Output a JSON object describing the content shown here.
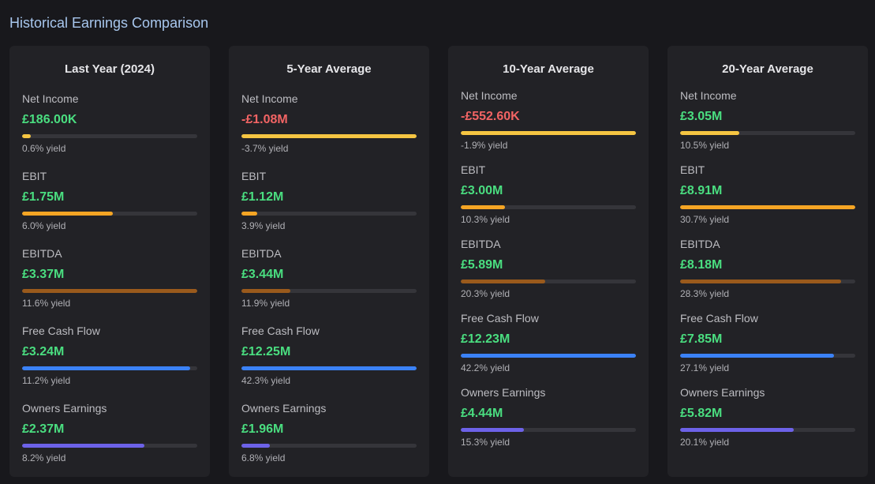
{
  "page_title": "Historical Earnings Comparison",
  "colors": {
    "net_income": "#f5c542",
    "ebit": "#f5a524",
    "ebitda": "#9a5a1c",
    "free_cash_flow": "#3b82f6",
    "owners_earnings": "#6d62e8"
  },
  "cards": [
    {
      "title": "Last Year (2024)",
      "metrics": [
        {
          "key": "net_income",
          "label": "Net Income",
          "value": "£186.00K",
          "yield": "0.6% yield",
          "fill": 0.05,
          "negative": false
        },
        {
          "key": "ebit",
          "label": "EBIT",
          "value": "£1.75M",
          "yield": "6.0% yield",
          "fill": 0.52,
          "negative": false
        },
        {
          "key": "ebitda",
          "label": "EBITDA",
          "value": "£3.37M",
          "yield": "11.6% yield",
          "fill": 1.0,
          "negative": false
        },
        {
          "key": "free_cash_flow",
          "label": "Free Cash Flow",
          "value": "£3.24M",
          "yield": "11.2% yield",
          "fill": 0.96,
          "negative": false
        },
        {
          "key": "owners_earnings",
          "label": "Owners Earnings",
          "value": "£2.37M",
          "yield": "8.2% yield",
          "fill": 0.7,
          "negative": false
        }
      ]
    },
    {
      "title": "5-Year Average",
      "metrics": [
        {
          "key": "net_income",
          "label": "Net Income",
          "value": "-£1.08M",
          "yield": "-3.7% yield",
          "fill": 1.0,
          "negative": true
        },
        {
          "key": "ebit",
          "label": "EBIT",
          "value": "£1.12M",
          "yield": "3.9% yield",
          "fill": 0.09,
          "negative": false
        },
        {
          "key": "ebitda",
          "label": "EBITDA",
          "value": "£3.44M",
          "yield": "11.9% yield",
          "fill": 0.28,
          "negative": false
        },
        {
          "key": "free_cash_flow",
          "label": "Free Cash Flow",
          "value": "£12.25M",
          "yield": "42.3% yield",
          "fill": 1.0,
          "negative": false
        },
        {
          "key": "owners_earnings",
          "label": "Owners Earnings",
          "value": "£1.96M",
          "yield": "6.8% yield",
          "fill": 0.16,
          "negative": false
        }
      ]
    },
    {
      "title": "10-Year Average",
      "metrics": [
        {
          "key": "net_income",
          "label": "Net Income",
          "value": "-£552.60K",
          "yield": "-1.9% yield",
          "fill": 1.0,
          "negative": true
        },
        {
          "key": "ebit",
          "label": "EBIT",
          "value": "£3.00M",
          "yield": "10.3% yield",
          "fill": 0.25,
          "negative": false
        },
        {
          "key": "ebitda",
          "label": "EBITDA",
          "value": "£5.89M",
          "yield": "20.3% yield",
          "fill": 0.48,
          "negative": false
        },
        {
          "key": "free_cash_flow",
          "label": "Free Cash Flow",
          "value": "£12.23M",
          "yield": "42.2% yield",
          "fill": 1.0,
          "negative": false
        },
        {
          "key": "owners_earnings",
          "label": "Owners Earnings",
          "value": "£4.44M",
          "yield": "15.3% yield",
          "fill": 0.36,
          "negative": false
        }
      ]
    },
    {
      "title": "20-Year Average",
      "metrics": [
        {
          "key": "net_income",
          "label": "Net Income",
          "value": "£3.05M",
          "yield": "10.5% yield",
          "fill": 0.34,
          "negative": false
        },
        {
          "key": "ebit",
          "label": "EBIT",
          "value": "£8.91M",
          "yield": "30.7% yield",
          "fill": 1.0,
          "negative": false
        },
        {
          "key": "ebitda",
          "label": "EBITDA",
          "value": "£8.18M",
          "yield": "28.3% yield",
          "fill": 0.92,
          "negative": false
        },
        {
          "key": "free_cash_flow",
          "label": "Free Cash Flow",
          "value": "£7.85M",
          "yield": "27.1% yield",
          "fill": 0.88,
          "negative": false
        },
        {
          "key": "owners_earnings",
          "label": "Owners Earnings",
          "value": "£5.82M",
          "yield": "20.1% yield",
          "fill": 0.65,
          "negative": false
        }
      ]
    }
  ]
}
